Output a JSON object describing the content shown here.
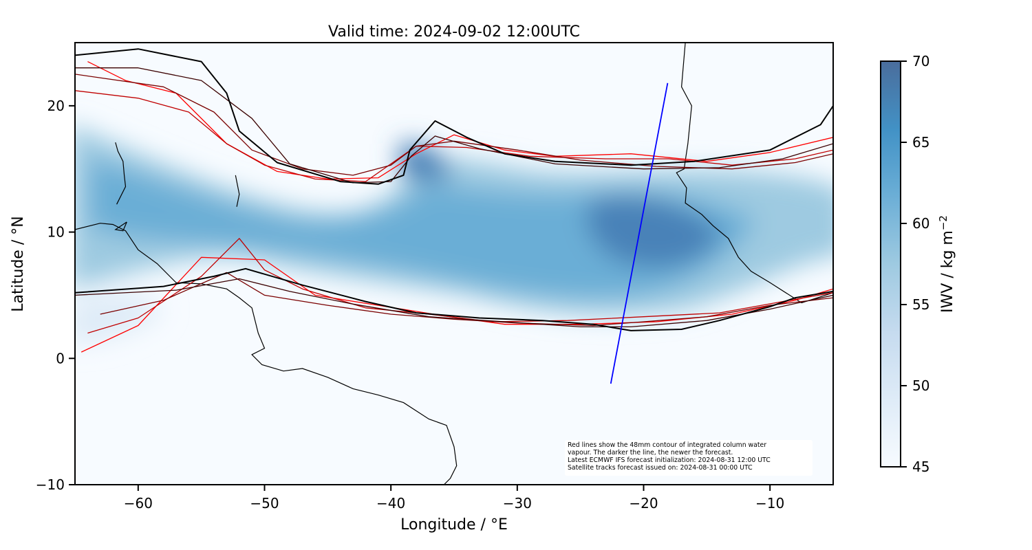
{
  "title": "Valid time: 2024-09-02 12:00UTC",
  "axes": {
    "xlabel": "Longitude / °E",
    "ylabel": "Latitude / °N",
    "xlim": [
      -65,
      -5
    ],
    "ylim": [
      -10,
      25
    ],
    "xticks": [
      {
        "value": -60,
        "label": "−60"
      },
      {
        "value": -50,
        "label": "−50"
      },
      {
        "value": -40,
        "label": "−40"
      },
      {
        "value": -30,
        "label": "−30"
      },
      {
        "value": -20,
        "label": "−20"
      },
      {
        "value": -10,
        "label": "−10"
      }
    ],
    "yticks": [
      {
        "value": 20,
        "label": "20"
      },
      {
        "value": 10,
        "label": "10"
      },
      {
        "value": 0,
        "label": "0"
      },
      {
        "value": -10,
        "label": "−10"
      }
    ]
  },
  "colorbar": {
    "label": "IWV / kg m",
    "label_exponent": "−2",
    "range": [
      45,
      70
    ],
    "ticks": [
      {
        "value": 70,
        "label": "70"
      },
      {
        "value": 65,
        "label": "65"
      },
      {
        "value": 60,
        "label": "60"
      },
      {
        "value": 55,
        "label": "55"
      },
      {
        "value": 50,
        "label": "50"
      },
      {
        "value": 45,
        "label": "45"
      }
    ],
    "colors": [
      "#f7fbff",
      "#deebf7",
      "#c6dbef",
      "#9ecae1",
      "#6baed6",
      "#4292c6",
      "#4a72a3"
    ]
  },
  "annotation": [
    "Red lines show the 48mm contour of integrated column water",
    "vapour. The darker the line, the newer the forecast.",
    "Latest ECMWF IFS forecast initialization: 2024-08-31 12:00 UTC",
    "Satellite tracks forecast issued on: 2024-08-31 00:00 UTC"
  ],
  "colors": {
    "newest_contour": "#000000",
    "older_contours": [
      "#3a0000",
      "#7a0000",
      "#c00000",
      "#ff0000"
    ],
    "satellite_track": "#0000ff",
    "coastline": "#000000"
  },
  "satellite_track": {
    "start": [
      -22.6,
      -2.0
    ],
    "end": [
      -18.1,
      21.8
    ]
  },
  "coastlines": [
    [
      [
        -65,
        10.2
      ],
      [
        -63,
        10.7
      ],
      [
        -62,
        10.6
      ],
      [
        -61,
        10.1
      ],
      [
        -60,
        8.6
      ],
      [
        -58.5,
        7.5
      ],
      [
        -57,
        6.0
      ],
      [
        -55,
        5.9
      ],
      [
        -53,
        5.5
      ],
      [
        -52,
        4.8
      ],
      [
        -51,
        4.0
      ],
      [
        -50.5,
        2.0
      ],
      [
        -50,
        0.8
      ],
      [
        -51,
        0.3
      ],
      [
        -50.2,
        -0.5
      ],
      [
        -48.5,
        -1.0
      ],
      [
        -47,
        -0.8
      ],
      [
        -45,
        -1.5
      ],
      [
        -43,
        -2.4
      ],
      [
        -41,
        -2.9
      ],
      [
        -39,
        -3.5
      ],
      [
        -37,
        -4.8
      ],
      [
        -35.6,
        -5.3
      ],
      [
        -35,
        -7
      ],
      [
        -34.8,
        -8.5
      ],
      [
        -35.3,
        -9.5
      ],
      [
        -35.8,
        -10.0
      ]
    ],
    [
      [
        -16.7,
        25
      ],
      [
        -17.0,
        21.5
      ],
      [
        -16.2,
        20
      ],
      [
        -16.5,
        17
      ],
      [
        -16.8,
        15.0
      ],
      [
        -17.4,
        14.7
      ],
      [
        -16.6,
        13.5
      ],
      [
        -16.7,
        12.3
      ],
      [
        -15.4,
        11.4
      ],
      [
        -14.5,
        10.5
      ],
      [
        -13.3,
        9.5
      ],
      [
        -12.5,
        8
      ],
      [
        -11.5,
        6.9
      ],
      [
        -10,
        6.0
      ],
      [
        -7.5,
        4.4
      ],
      [
        -5,
        5.2
      ]
    ],
    [
      [
        -61.8,
        17.1
      ],
      [
        -61.6,
        16.4
      ],
      [
        -61.2,
        15.6
      ],
      [
        -61.1,
        14.5
      ],
      [
        -61.0,
        13.6
      ],
      [
        -61.7,
        12.2
      ]
    ],
    [
      [
        -60.9,
        10.8
      ],
      [
        -61.8,
        10.2
      ],
      [
        -61.2,
        10.1
      ],
      [
        -60.9,
        10.8
      ]
    ],
    [
      [
        -52.3,
        14.5
      ],
      [
        -52.0,
        13.0
      ],
      [
        -52.2,
        12.0
      ]
    ]
  ],
  "contours": [
    {
      "level": 0,
      "points": [
        [
          -65,
          24
        ],
        [
          -60,
          24.5
        ],
        [
          -55,
          23.5
        ],
        [
          -53,
          21
        ],
        [
          -52,
          18
        ],
        [
          -49,
          15.5
        ],
        [
          -44,
          14
        ],
        [
          -41,
          13.8
        ],
        [
          -39,
          14.5
        ],
        [
          -38.5,
          16.5
        ],
        [
          -36.5,
          18.8
        ],
        [
          -34,
          17.5
        ],
        [
          -31,
          16.2
        ],
        [
          -27,
          15.6
        ],
        [
          -21,
          15.3
        ],
        [
          -16,
          15.6
        ],
        [
          -10,
          16.5
        ],
        [
          -6,
          18.5
        ],
        [
          -5,
          20
        ]
      ]
    },
    {
      "level": 0,
      "points": [
        [
          -65,
          5.2
        ],
        [
          -58,
          5.7
        ],
        [
          -54,
          6.5
        ],
        [
          -51.5,
          7.1
        ],
        [
          -47,
          5.8
        ],
        [
          -42,
          4.5
        ],
        [
          -38,
          3.6
        ],
        [
          -33,
          3.2
        ],
        [
          -28,
          3.0
        ],
        [
          -24,
          2.7
        ],
        [
          -21,
          2.2
        ],
        [
          -17,
          2.3
        ],
        [
          -14,
          3.0
        ],
        [
          -10,
          4.1
        ],
        [
          -8,
          4.8
        ],
        [
          -5,
          5.3
        ]
      ]
    },
    {
      "level": 1,
      "points": [
        [
          -65,
          23
        ],
        [
          -60,
          23
        ],
        [
          -55,
          22
        ],
        [
          -51,
          19
        ],
        [
          -48,
          15.4
        ],
        [
          -43,
          13.9
        ],
        [
          -40,
          14.0
        ],
        [
          -38.4,
          16
        ],
        [
          -36.5,
          17.6
        ],
        [
          -33,
          16.6
        ],
        [
          -27,
          15.4
        ],
        [
          -20,
          15.0
        ],
        [
          -14,
          15.1
        ],
        [
          -9,
          15.8
        ],
        [
          -5,
          17
        ]
      ]
    },
    {
      "level": 1,
      "points": [
        [
          -65,
          5.0
        ],
        [
          -57,
          5.4
        ],
        [
          -52,
          6.3
        ],
        [
          -48,
          5.3
        ],
        [
          -43,
          4.3
        ],
        [
          -37,
          3.3
        ],
        [
          -31,
          2.9
        ],
        [
          -25,
          2.5
        ],
        [
          -21,
          2.5
        ],
        [
          -15,
          3.0
        ],
        [
          -10,
          3.9
        ],
        [
          -5,
          5.0
        ]
      ]
    },
    {
      "level": 2,
      "points": [
        [
          -65,
          22.5
        ],
        [
          -58,
          21.5
        ],
        [
          -54,
          19.5
        ],
        [
          -51,
          16.5
        ],
        [
          -47,
          15.0
        ],
        [
          -43,
          14.5
        ],
        [
          -40,
          15.3
        ],
        [
          -38,
          16.8
        ],
        [
          -35,
          17.2
        ],
        [
          -30,
          16.5
        ],
        [
          -25,
          15.7
        ],
        [
          -19,
          15.2
        ],
        [
          -13,
          15.0
        ],
        [
          -8,
          15.5
        ],
        [
          -5,
          16.2
        ]
      ]
    },
    {
      "level": 2,
      "points": [
        [
          -63,
          3.5
        ],
        [
          -58,
          4.6
        ],
        [
          -53,
          6.8
        ],
        [
          -50,
          5.0
        ],
        [
          -45,
          4.2
        ],
        [
          -40,
          3.5
        ],
        [
          -35,
          3.1
        ],
        [
          -30,
          2.8
        ],
        [
          -24,
          2.6
        ],
        [
          -20,
          2.9
        ],
        [
          -15,
          3.3
        ],
        [
          -10,
          4.2
        ],
        [
          -5,
          4.8
        ]
      ]
    },
    {
      "level": 3,
      "points": [
        [
          -65,
          21.2
        ],
        [
          -60,
          20.6
        ],
        [
          -56,
          19.5
        ],
        [
          -53,
          17.0
        ],
        [
          -50,
          15.3
        ],
        [
          -46,
          14.2
        ],
        [
          -42,
          14.0
        ],
        [
          -38,
          16.8
        ],
        [
          -34,
          16.7
        ],
        [
          -29,
          16.0
        ],
        [
          -23,
          15.8
        ],
        [
          -18,
          15.8
        ],
        [
          -13,
          15.3
        ],
        [
          -8,
          15.8
        ],
        [
          -5,
          16.5
        ]
      ]
    },
    {
      "level": 3,
      "points": [
        [
          -64,
          2.0
        ],
        [
          -60,
          3.2
        ],
        [
          -55,
          6.5
        ],
        [
          -52,
          9.5
        ],
        [
          -50,
          7.0
        ],
        [
          -47,
          5.5
        ],
        [
          -42,
          4.0
        ],
        [
          -37,
          3.5
        ],
        [
          -32,
          2.9
        ],
        [
          -26,
          3.0
        ],
        [
          -20,
          3.3
        ],
        [
          -14,
          3.6
        ],
        [
          -9,
          4.5
        ],
        [
          -5,
          5.2
        ]
      ]
    },
    {
      "level": 4,
      "points": [
        [
          -64,
          23.5
        ],
        [
          -61,
          22
        ],
        [
          -57,
          21
        ],
        [
          -53,
          17
        ],
        [
          -49,
          14.8
        ],
        [
          -45,
          14.2
        ],
        [
          -41,
          14.3
        ],
        [
          -38,
          16.2
        ],
        [
          -35,
          17.7
        ],
        [
          -31,
          16.5
        ],
        [
          -27,
          16.0
        ],
        [
          -21,
          16.2
        ],
        [
          -15,
          15.6
        ],
        [
          -10,
          16.3
        ],
        [
          -5,
          17.5
        ]
      ]
    },
    {
      "level": 4,
      "points": [
        [
          -64.5,
          0.5
        ],
        [
          -60,
          2.6
        ],
        [
          -55,
          8.0
        ],
        [
          -50,
          7.8
        ],
        [
          -46,
          5.0
        ],
        [
          -41,
          4.2
        ],
        [
          -36,
          3.4
        ],
        [
          -31,
          2.7
        ],
        [
          -25,
          2.7
        ],
        [
          -19,
          2.9
        ],
        [
          -13,
          3.5
        ],
        [
          -8,
          4.6
        ],
        [
          -5,
          5.5
        ]
      ]
    }
  ]
}
